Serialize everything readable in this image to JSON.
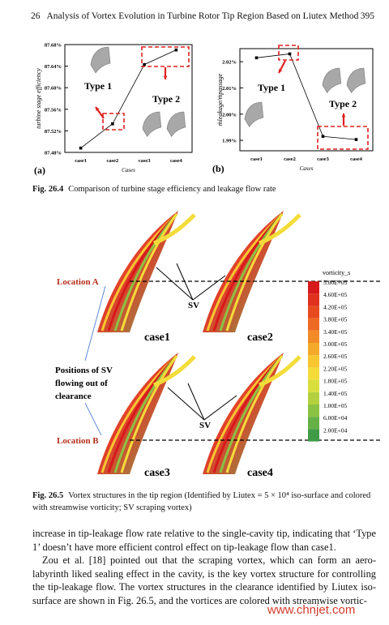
{
  "header": {
    "chapter": "26",
    "title": "Analysis of Vortex Evolution in Turbine Rotor Tip Region Based on Liutex Method",
    "page": "395"
  },
  "chart_data": [
    {
      "type": "line",
      "panel": "(a)",
      "categories": [
        "case1",
        "case2",
        "case3",
        "case4"
      ],
      "values": [
        87.488,
        87.533,
        87.643,
        87.67
      ],
      "color": "#000000",
      "x_label": "Cases",
      "y_label": "turbine stage efficiency",
      "ylim": [
        87.48,
        87.68
      ],
      "yticks": [
        {
          "value": 87.48,
          "label": "87.48%"
        },
        {
          "value": 87.52,
          "label": "87.52%"
        },
        {
          "value": 87.56,
          "label": "87.56%"
        },
        {
          "value": 87.6,
          "label": "87.60%"
        },
        {
          "value": 87.64,
          "label": "87.64%"
        },
        {
          "value": 87.68,
          "label": "87.68%"
        }
      ],
      "annotations": [
        "Type 1",
        "Type 2"
      ]
    },
    {
      "type": "line",
      "panel": "(b)",
      "categories": [
        "case1",
        "case2",
        "case3",
        "case4"
      ],
      "values": [
        2.0215,
        2.023,
        1.9915,
        1.9903
      ],
      "color": "#000000",
      "x_label": "Cases",
      "y_label": "ṁleakage/ṁpassage",
      "ylim": [
        1.986,
        2.025
      ],
      "yticks": [
        {
          "value": 1.99,
          "label": "1.99%"
        },
        {
          "value": 2.0,
          "label": "2.00%"
        },
        {
          "value": 2.01,
          "label": "2.01%"
        },
        {
          "value": 2.02,
          "label": "2.02%"
        }
      ],
      "annotations": [
        "Type 1",
        "Type 2"
      ]
    }
  ],
  "caption_26_4": {
    "label": "Fig. 26.4",
    "text": "Comparison of turbine stage efficiency and leakage flow rate"
  },
  "figure_26_5": {
    "locations": [
      "Location A",
      "Location B"
    ],
    "sv": [
      "SV",
      "SV"
    ],
    "cases": [
      "case1",
      "case2",
      "case3",
      "case4"
    ],
    "note": [
      "Positions of SV",
      "flowing out of",
      "clearance"
    ],
    "legend_title": "vorticity_s",
    "legend_labels": [
      "5.00E+05",
      "4.60E+05",
      "4.20E+05",
      "3.80E+05",
      "3.40E+05",
      "3.00E+05",
      "2.60E+05",
      "2.20E+05",
      "1.80E+05",
      "1.40E+05",
      "1.00E+05",
      "6.00E+04",
      "2.00E+04"
    ],
    "legend_colors": [
      "#d7191c",
      "#e0301e",
      "#e84a1f",
      "#ee6a22",
      "#f28a26",
      "#f5a92a",
      "#f7c631",
      "#f3dc3a",
      "#d8de3c",
      "#b3d13f",
      "#8cc243",
      "#66b046",
      "#3f9b48"
    ]
  },
  "caption_26_5": {
    "label": "Fig. 26.5",
    "text": "Vortex structures in the tip region (Identified by Liutex = 5 × 10⁴ iso-surface and colored with streamwise vorticity; SV scraping vortex)"
  },
  "body": [
    "increase in tip-leakage flow rate relative to the single-cavity tip, indicating that ‘Type 1’ doesn’t have more efficient control effect on tip-leakage flow than case1.",
    "Zou et al. [18] pointed out that the scraping vortex, which can form an aero-labyrinth liked sealing effect in the cavity, is the key vortex structure for controlling the tip-leakage flow. The vortex structures in the clearance identified by Liutex iso-surface are shown in Fig. 26.5, and the vortices are colored with streamwise vortic-"
  ],
  "watermark": "www.chnjet.com"
}
